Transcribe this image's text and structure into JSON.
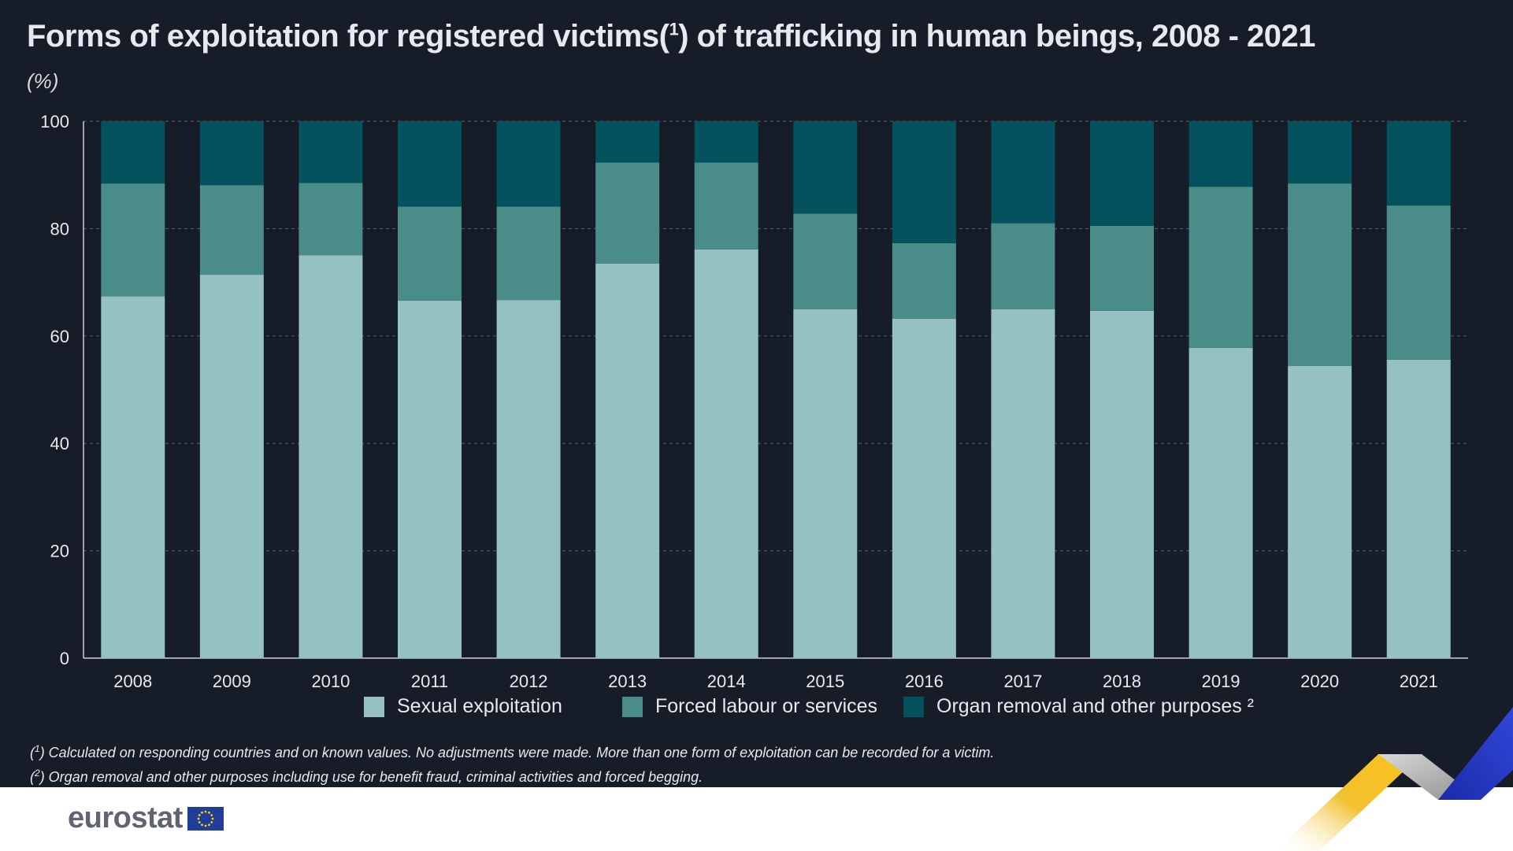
{
  "header": {
    "title_before": "Forms of exploitation for registered victims(",
    "title_sup": "1",
    "title_after": ") of trafficking in human beings, 2008 - 2021",
    "unit": "(%)"
  },
  "colors": {
    "background": "#171c29",
    "sexual": "#95c1c0",
    "forced": "#4a8c88",
    "organ": "#03525e",
    "text": "#e6e9ee",
    "grid": "#5a6070"
  },
  "chart_data": {
    "type": "bar",
    "stacked": true,
    "categories": [
      "2008",
      "2009",
      "2010",
      "2011",
      "2012",
      "2013",
      "2014",
      "2015",
      "2016",
      "2017",
      "2018",
      "2019",
      "2020",
      "2021"
    ],
    "series": [
      {
        "name": "Sexual exploitation",
        "values": [
          67.4,
          71.4,
          75.0,
          66.6,
          66.7,
          73.5,
          76.1,
          65.0,
          63.2,
          65.0,
          64.7,
          57.8,
          54.4,
          55.6
        ]
      },
      {
        "name": "Forced labour or services",
        "values": [
          21.0,
          16.7,
          13.5,
          17.5,
          17.4,
          18.8,
          16.2,
          17.8,
          14.1,
          16.0,
          15.8,
          30.0,
          34.0,
          28.7
        ]
      },
      {
        "name": "Organ removal and other purposes ²",
        "values": [
          11.6,
          11.9,
          11.5,
          15.9,
          15.9,
          7.7,
          7.7,
          17.2,
          22.7,
          19.0,
          19.5,
          12.2,
          11.6,
          15.7
        ]
      }
    ],
    "ylim": [
      0,
      100
    ],
    "yticks": [
      0,
      20,
      40,
      60,
      80,
      100
    ],
    "grid": true,
    "legend_position": "bottom"
  },
  "footnotes": [
    {
      "sup": "1",
      "text": ") Calculated on responding countries and on known values. No adjustments were made. More than one form of exploitation can be recorded for a victim."
    },
    {
      "sup": "2",
      "text": ") Organ removal and other purposes including use for benefit fraud, criminal activities and forced begging."
    }
  ],
  "brand": {
    "logo_text": "eurostat"
  }
}
